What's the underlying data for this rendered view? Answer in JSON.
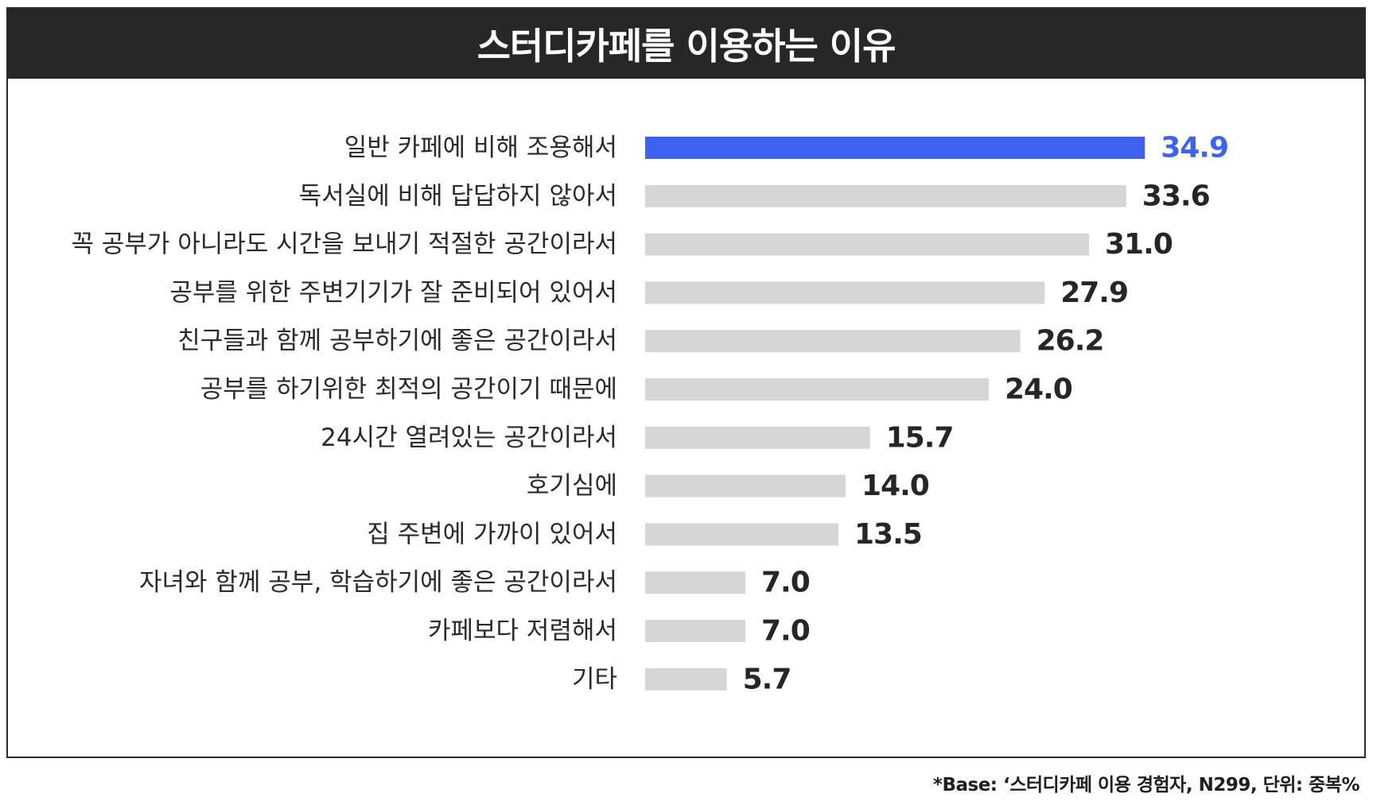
{
  "chart_data": {
    "type": "bar",
    "orientation": "horizontal",
    "title": "스터디카페를 이용하는 이유",
    "categories": [
      "일반 카페에 비해 조용해서",
      "독서실에 비해 답답하지 않아서",
      "꼭 공부가 아니라도 시간을 보내기 적절한 공간이라서",
      "공부를 위한 주변기기가 잘 준비되어 있어서",
      "친구들과 함께 공부하기에 좋은 공간이라서",
      "공부를 하기위한 최적의 공간이기 때문에",
      "24시간 열려있는 공간이라서",
      "호기심에",
      "집 주변에 가까이 있어서",
      "자녀와 함께 공부, 학습하기에 좋은 공간이라서",
      "카페보다 저렴해서",
      "기타"
    ],
    "values": [
      34.9,
      33.6,
      31.0,
      27.9,
      26.2,
      24.0,
      15.7,
      14.0,
      13.5,
      7.0,
      7.0,
      5.7
    ],
    "value_labels": [
      "34.9",
      "33.6",
      "31.0",
      "27.9",
      "26.2",
      "24.0",
      "15.7",
      "14.0",
      "13.5",
      "7.0",
      "7.0",
      "5.7"
    ],
    "highlight_index": 0,
    "xlim": [
      0,
      38
    ],
    "grid": false,
    "footnote": "*Base: ‘스터디카페 이용 경험자, N299, 단위: 중복%"
  },
  "colors": {
    "highlight_bar": "#3d63ee",
    "default_bar": "#d6d6d6",
    "highlight_label": "#3d63ee",
    "default_label": "#262626",
    "title_bg": "#272727",
    "title_text": "#ffffff"
  }
}
